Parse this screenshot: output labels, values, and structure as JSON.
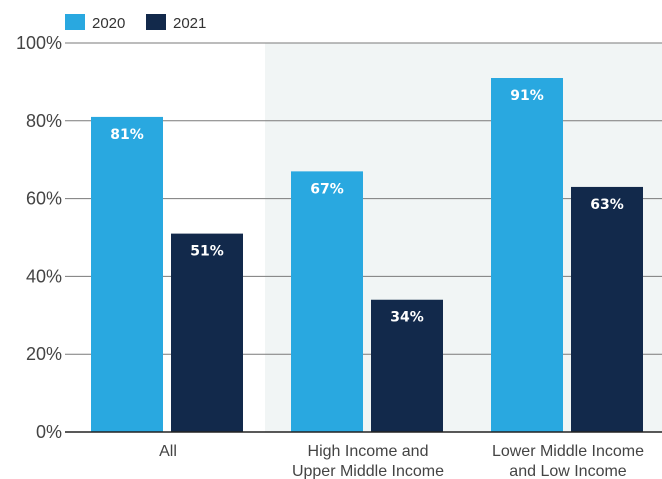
{
  "chart_data": {
    "type": "bar",
    "title": "",
    "xlabel": "",
    "ylabel": "",
    "ylim": [
      0,
      100
    ],
    "y_ticks": [
      0,
      20,
      40,
      60,
      80,
      100
    ],
    "y_tick_format": "%",
    "grid": true,
    "legend_position": "top-left",
    "categories": [
      [
        "All"
      ],
      [
        "High Income and",
        "Upper Middle Income"
      ],
      [
        "Lower Middle Income",
        "and Low Income"
      ]
    ],
    "highlighted_categories": [
      1,
      2
    ],
    "series": [
      {
        "name": "2020",
        "color": "#29a8e0",
        "values": [
          81,
          67,
          91
        ],
        "labels": [
          "81%",
          "67%",
          "91%"
        ]
      },
      {
        "name": "2021",
        "color": "#12294b",
        "values": [
          51,
          34,
          63
        ],
        "labels": [
          "51%",
          "34%",
          "63%"
        ]
      }
    ],
    "background_highlight_color": "#f1f5f5"
  }
}
